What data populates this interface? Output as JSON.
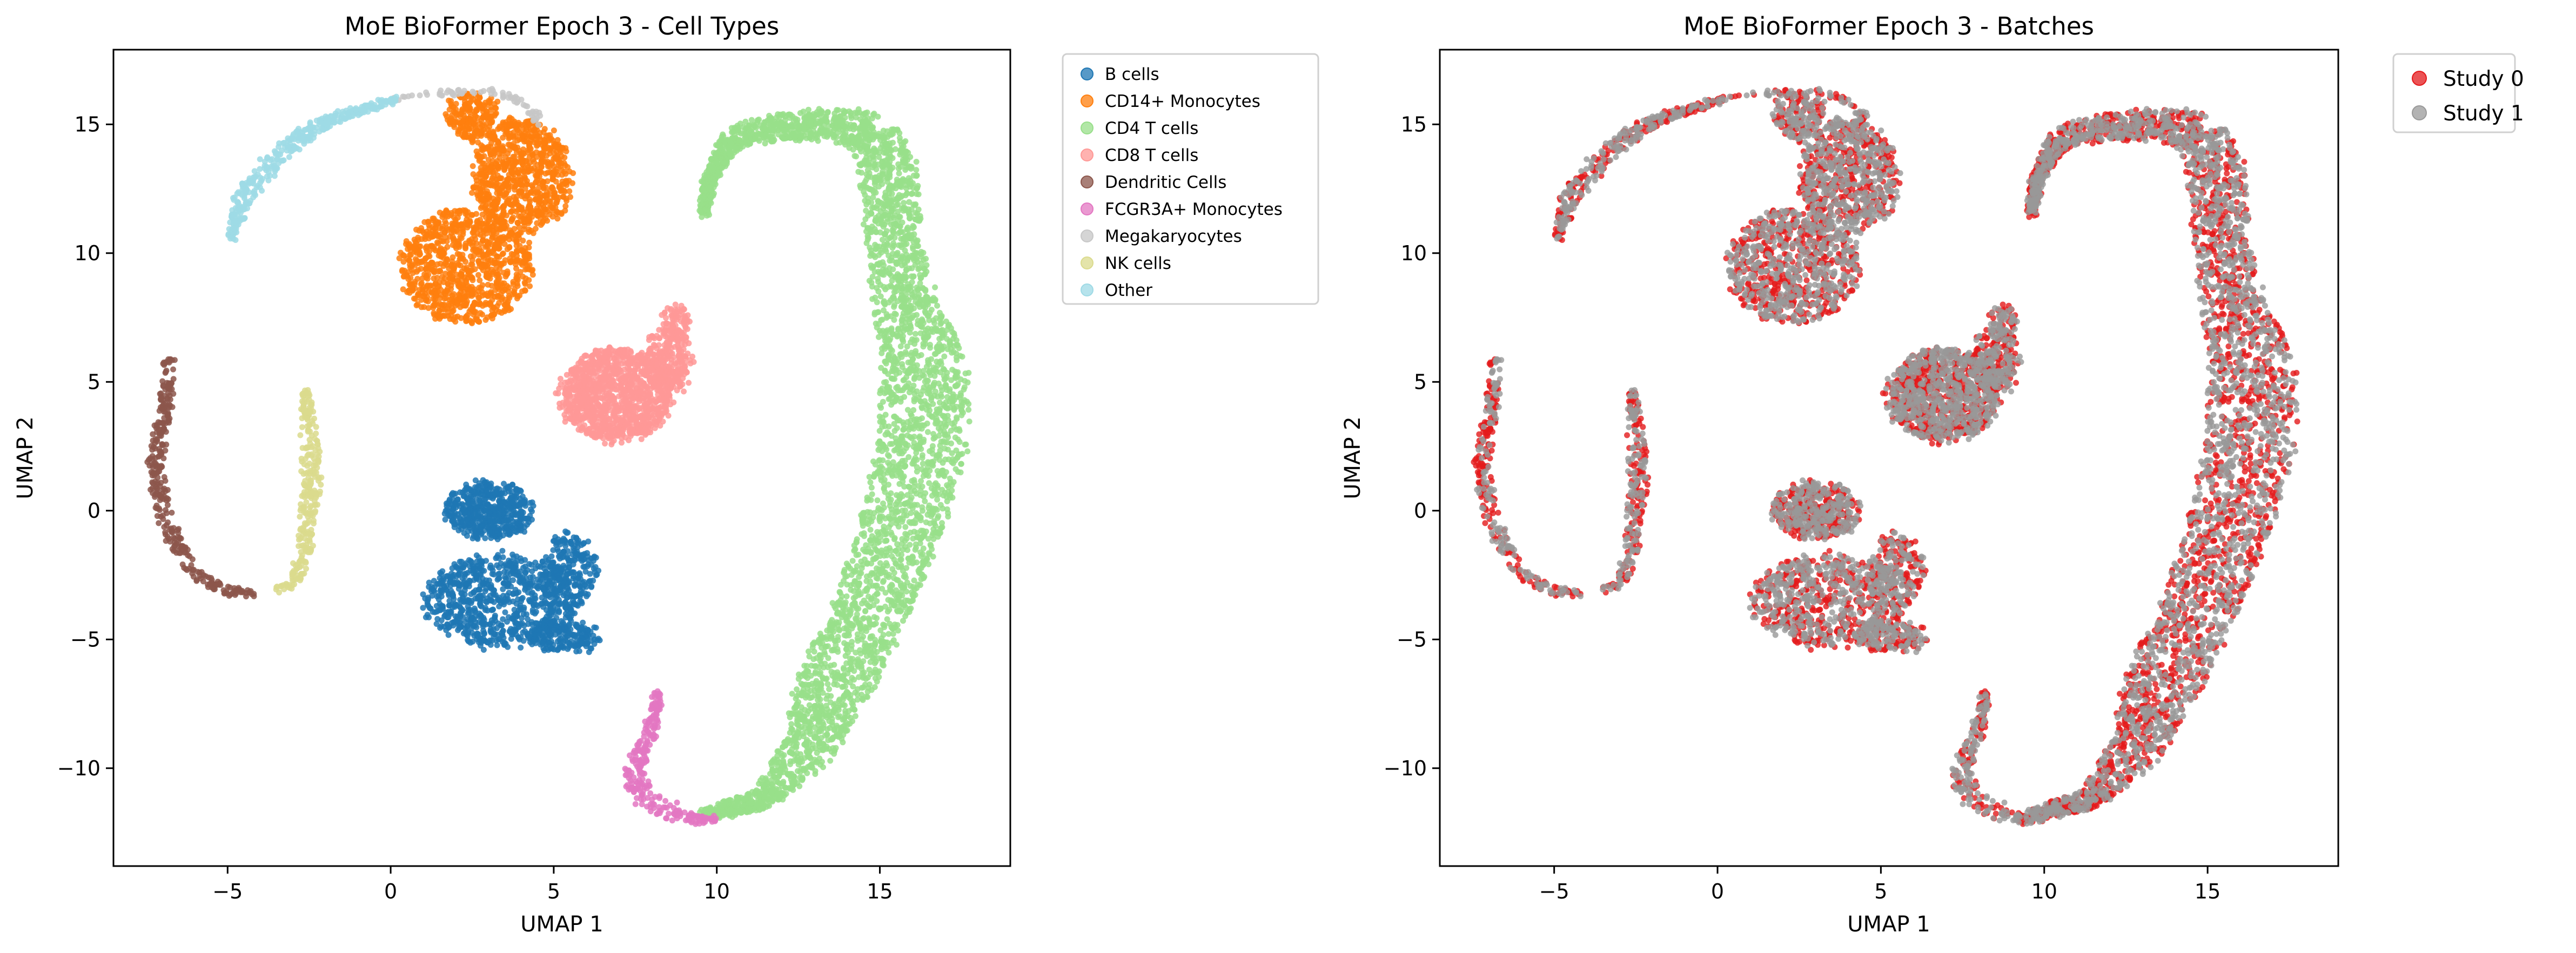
{
  "chart_data": [
    {
      "type": "scatter",
      "title": "MoE BioFormer Epoch 3 - Cell Types",
      "xlabel": "UMAP 1",
      "ylabel": "UMAP 2",
      "xlim": [
        -8.5,
        19.0
      ],
      "ylim": [
        -13.8,
        17.9
      ],
      "xticks": [
        -5,
        0,
        5,
        10,
        15
      ],
      "yticks": [
        -10,
        -5,
        0,
        5,
        10,
        15
      ],
      "grid": false,
      "legend_position": "outside-top-right",
      "series": [
        {
          "name": "B cells",
          "color": "#1f77b4",
          "clusters": [
            {
              "cx": 3.0,
              "cy": 0.0,
              "rx": 1.3,
              "ry": 1.1,
              "n": 500
            },
            {
              "cx": 3.4,
              "cy": -3.5,
              "rx": 2.4,
              "ry": 1.8,
              "n": 800
            },
            {
              "cx": 5.5,
              "cy": -2.3,
              "rx": 0.8,
              "ry": 1.4,
              "n": 220
            },
            {
              "cx": 5.3,
              "cy": -4.9,
              "rx": 1.1,
              "ry": 0.6,
              "n": 200
            }
          ]
        },
        {
          "name": "CD14+ Monocytes",
          "color": "#ff7f0e",
          "clusters": [
            {
              "cx": 2.3,
              "cy": 9.5,
              "rx": 2.0,
              "ry": 2.2,
              "n": 900
            },
            {
              "cx": 4.0,
              "cy": 13.0,
              "rx": 1.5,
              "ry": 2.2,
              "n": 800
            },
            {
              "cx": 2.5,
              "cy": 15.3,
              "rx": 0.8,
              "ry": 0.9,
              "n": 200
            }
          ]
        },
        {
          "name": "CD4 T cells",
          "color": "#98df8a",
          "path": [
            [
              9.6,
              -11.8
            ],
            [
              11.5,
              -11.2
            ],
            [
              12.8,
              -9.2
            ],
            [
              13.7,
              -6.5
            ],
            [
              14.8,
              -3.5
            ],
            [
              15.7,
              -0.5
            ],
            [
              16.3,
              2.5
            ],
            [
              16.4,
              5.5
            ],
            [
              15.8,
              8.0
            ],
            [
              15.4,
              10.5
            ],
            [
              15.3,
              13.0
            ],
            [
              14.8,
              14.7
            ],
            [
              13.5,
              15.0
            ],
            [
              12.0,
              14.9
            ],
            [
              10.5,
              14.5
            ],
            [
              9.8,
              13.0
            ],
            [
              9.6,
              11.5
            ]
          ],
          "width": [
            0.2,
            0.4,
            0.8,
            1.2,
            1.2,
            1.3,
            1.4,
            1.3,
            1.0,
            0.8,
            0.9,
            0.8,
            0.6,
            0.5,
            0.4,
            0.2,
            0.1
          ],
          "n": 3800
        },
        {
          "name": "CD8 T cells",
          "color": "#ff9896",
          "clusters": [
            {
              "cx": 6.9,
              "cy": 4.5,
              "rx": 1.7,
              "ry": 1.8,
              "n": 1100
            },
            {
              "cx": 8.5,
              "cy": 5.8,
              "rx": 0.7,
              "ry": 1.3,
              "n": 260
            },
            {
              "cx": 8.8,
              "cy": 7.3,
              "rx": 0.4,
              "ry": 0.7,
              "n": 80
            }
          ]
        },
        {
          "name": "Dendritic Cells",
          "color": "#8c564b",
          "path": [
            [
              -6.8,
              5.9
            ],
            [
              -6.9,
              4.0
            ],
            [
              -7.2,
              2.0
            ],
            [
              -7.0,
              0.0
            ],
            [
              -6.5,
              -1.5
            ],
            [
              -6.0,
              -2.5
            ],
            [
              -5.0,
              -3.1
            ],
            [
              -4.2,
              -3.2
            ]
          ],
          "width": [
            0.15,
            0.2,
            0.25,
            0.25,
            0.25,
            0.2,
            0.15,
            0.1
          ],
          "n": 320
        },
        {
          "name": "FCGR3A+ Monocytes",
          "color": "#e377c2",
          "path": [
            [
              8.2,
              -7.0
            ],
            [
              8.0,
              -8.5
            ],
            [
              7.5,
              -10.0
            ],
            [
              7.6,
              -11.0
            ],
            [
              8.4,
              -11.6
            ],
            [
              9.4,
              -12.0
            ],
            [
              10.0,
              -12.0
            ]
          ],
          "width": [
            0.12,
            0.18,
            0.3,
            0.35,
            0.3,
            0.2,
            0.1
          ],
          "n": 260
        },
        {
          "name": "Megakaryocytes",
          "color": "#c7c7c7",
          "path": [
            [
              0.2,
              16.0
            ],
            [
              1.5,
              16.2
            ],
            [
              3.0,
              16.3
            ],
            [
              4.2,
              15.8
            ],
            [
              4.6,
              15.0
            ]
          ],
          "width": [
            0.08,
            0.1,
            0.12,
            0.1,
            0.08
          ],
          "n": 70
        },
        {
          "name": "NK cells",
          "color": "#dbdb8d",
          "path": [
            [
              -2.6,
              4.8
            ],
            [
              -2.5,
              3.0
            ],
            [
              -2.4,
              1.0
            ],
            [
              -2.6,
              -1.0
            ],
            [
              -2.8,
              -2.5
            ],
            [
              -3.5,
              -3.2
            ]
          ],
          "width": [
            0.1,
            0.25,
            0.28,
            0.25,
            0.2,
            0.12
          ],
          "n": 280
        },
        {
          "name": "Other",
          "color": "#9edae5",
          "path": [
            [
              -4.9,
              10.6
            ],
            [
              -4.5,
              12.2
            ],
            [
              -3.6,
              13.7
            ],
            [
              -2.2,
              15.0
            ],
            [
              -0.8,
              15.6
            ],
            [
              0.2,
              16.0
            ]
          ],
          "width": [
            0.12,
            0.28,
            0.35,
            0.25,
            0.12,
            0.08
          ],
          "n": 360
        }
      ]
    },
    {
      "type": "scatter",
      "title": "MoE BioFormer Epoch 3 - Batches",
      "xlabel": "UMAP 1",
      "ylabel": "UMAP 2",
      "xlim": [
        -8.5,
        19.0
      ],
      "ylim": [
        -13.8,
        17.9
      ],
      "xticks": [
        -5,
        0,
        5,
        10,
        15
      ],
      "yticks": [
        -10,
        -5,
        0,
        5,
        10,
        15
      ],
      "grid": false,
      "legend_position": "outside-top-right",
      "series": [
        {
          "name": "Study 0",
          "color": "#e41a1c",
          "share": 0.5
        },
        {
          "name": "Study 1",
          "color": "#999999",
          "share": 0.5
        }
      ]
    }
  ]
}
